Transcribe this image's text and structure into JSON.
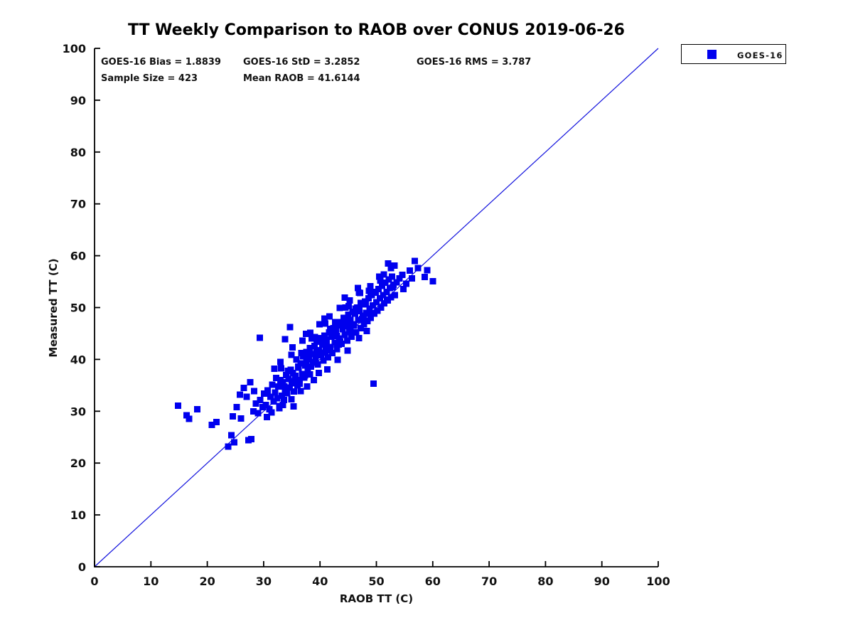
{
  "chart": {
    "title": "TT Weekly Comparison to RAOB over CONUS 2019-06-26"
  },
  "stats": {
    "bias": "GOES-16 Bias = 1.8839",
    "std": "GOES-16 StD = 3.2852",
    "rms": "GOES-16 RMS = 3.787",
    "sample": "Sample Size = 423",
    "mean_raob": "Mean RAOB = 41.6144",
    "values": {
      "bias": 1.8839,
      "std": 3.2852,
      "rms": 3.787,
      "sample_size": 423,
      "mean_raob": 41.6144
    }
  },
  "legend": {
    "items": [
      {
        "label": "GOES-16",
        "marker_color": "#0000EE",
        "marker_shape": "square"
      }
    ],
    "position": "top-right-outside"
  },
  "axes": {
    "x_label": "RAOB TT (C)",
    "y_label": "Measured TT (C)"
  },
  "colors": {
    "marker": "#0000EE",
    "line": "#1111DD",
    "axis": "#000000",
    "text": "#111111",
    "background": "#ffffff"
  },
  "chart_data": {
    "type": "scatter",
    "title": "TT Weekly Comparison to RAOB over CONUS 2019-06-26",
    "xlabel": "RAOB TT (C)",
    "ylabel": "Measured TT (C)",
    "xlim": [
      0,
      100
    ],
    "ylim": [
      0,
      100
    ],
    "xticks": [
      0,
      10,
      20,
      30,
      40,
      50,
      60,
      70,
      80,
      90,
      100
    ],
    "yticks": [
      0,
      10,
      20,
      30,
      40,
      50,
      60,
      70,
      80,
      90,
      100
    ],
    "grid": false,
    "legend_position": "top-right-outside",
    "marker": {
      "shape": "square",
      "size": 9,
      "color": "#0000EE"
    },
    "reference_line": {
      "from": [
        0,
        0
      ],
      "to": [
        100,
        100
      ],
      "color": "#1111DD",
      "width": 1.2
    },
    "series": [
      {
        "name": "GOES-16",
        "points": [
          [
            14.8,
            31.1
          ],
          [
            16.3,
            29.2
          ],
          [
            16.8,
            28.5
          ],
          [
            18.2,
            30.4
          ],
          [
            20.8,
            27.4
          ],
          [
            21.6,
            27.9
          ],
          [
            24.5,
            29.0
          ],
          [
            26.0,
            28.6
          ],
          [
            23.7,
            23.2
          ],
          [
            24.3,
            25.4
          ],
          [
            24.8,
            24.0
          ],
          [
            27.3,
            24.4
          ],
          [
            27.8,
            24.6
          ],
          [
            25.2,
            30.8
          ],
          [
            25.8,
            33.2
          ],
          [
            26.5,
            34.5
          ],
          [
            27.0,
            32.8
          ],
          [
            27.6,
            35.6
          ],
          [
            28.3,
            33.9
          ],
          [
            29.3,
            44.2
          ],
          [
            34.7,
            46.2
          ],
          [
            33.8,
            43.9
          ],
          [
            49.5,
            35.3
          ],
          [
            52.1,
            58.5
          ],
          [
            52.6,
            57.6
          ],
          [
            53.2,
            58.1
          ],
          [
            56.8,
            59.0
          ],
          [
            57.4,
            57.6
          ],
          [
            59.0,
            57.2
          ],
          [
            58.6,
            55.9
          ],
          [
            60.0,
            55.1
          ],
          [
            50.7,
            55.2
          ],
          [
            51.3,
            56.4
          ],
          [
            54.1,
            55.6
          ],
          [
            54.6,
            56.3
          ],
          [
            55.3,
            54.6
          ],
          [
            55.9,
            57.1
          ],
          [
            56.3,
            55.6
          ],
          [
            53.6,
            54.9
          ],
          [
            52.9,
            53.9
          ],
          [
            51.9,
            51.5
          ],
          [
            53.3,
            52.4
          ],
          [
            54.8,
            53.6
          ],
          [
            28.2,
            30.0
          ],
          [
            28.6,
            31.5
          ],
          [
            29.0,
            29.6
          ],
          [
            29.4,
            32.2
          ],
          [
            29.8,
            30.8
          ],
          [
            30.1,
            33.4
          ],
          [
            30.4,
            31.2
          ],
          [
            30.7,
            34.0
          ],
          [
            31.0,
            30.4
          ],
          [
            31.2,
            32.8
          ],
          [
            31.5,
            35.1
          ],
          [
            31.8,
            31.9
          ],
          [
            32.0,
            33.6
          ],
          [
            32.2,
            36.4
          ],
          [
            32.4,
            32.5
          ],
          [
            32.6,
            34.8
          ],
          [
            32.8,
            31.0
          ],
          [
            33.0,
            36.0
          ],
          [
            33.2,
            33.0
          ],
          [
            33.4,
            35.6
          ],
          [
            33.6,
            32.2
          ],
          [
            33.8,
            34.2
          ],
          [
            34.0,
            37.0
          ],
          [
            34.2,
            33.5
          ],
          [
            34.4,
            36.2
          ],
          [
            34.6,
            34.6
          ],
          [
            34.8,
            38.0
          ],
          [
            35.0,
            35.4
          ],
          [
            35.2,
            37.4
          ],
          [
            35.4,
            33.8
          ],
          [
            35.6,
            36.8
          ],
          [
            35.8,
            40.0
          ],
          [
            36.0,
            35.0
          ],
          [
            36.2,
            38.4
          ],
          [
            36.4,
            36.0
          ],
          [
            36.6,
            39.2
          ],
          [
            36.8,
            37.2
          ],
          [
            37.0,
            40.6
          ],
          [
            37.2,
            36.5
          ],
          [
            37.4,
            38.8
          ],
          [
            37.6,
            41.4
          ],
          [
            37.8,
            37.8
          ],
          [
            38.0,
            40.0
          ],
          [
            38.2,
            42.2
          ],
          [
            38.4,
            38.6
          ],
          [
            38.6,
            41.0
          ],
          [
            38.8,
            39.4
          ],
          [
            39.0,
            42.6
          ],
          [
            39.2,
            40.2
          ],
          [
            39.4,
            43.4
          ],
          [
            39.6,
            39.0
          ],
          [
            39.8,
            41.8
          ],
          [
            40.0,
            44.0
          ],
          [
            40.2,
            40.8
          ],
          [
            40.4,
            42.9
          ],
          [
            40.6,
            39.8
          ],
          [
            40.8,
            44.6
          ],
          [
            41.0,
            41.6
          ],
          [
            41.2,
            43.8
          ],
          [
            41.4,
            40.4
          ],
          [
            41.6,
            45.2
          ],
          [
            41.8,
            42.4
          ],
          [
            42.0,
            44.4
          ],
          [
            42.2,
            41.2
          ],
          [
            42.4,
            46.0
          ],
          [
            42.6,
            43.2
          ],
          [
            42.8,
            45.4
          ],
          [
            43.0,
            42.0
          ],
          [
            43.2,
            46.6
          ],
          [
            43.4,
            44.0
          ],
          [
            43.6,
            47.2
          ],
          [
            43.8,
            43.0
          ],
          [
            44.0,
            45.8
          ],
          [
            44.2,
            48.0
          ],
          [
            44.4,
            44.8
          ],
          [
            44.6,
            46.4
          ],
          [
            44.8,
            43.6
          ],
          [
            45.0,
            48.6
          ],
          [
            45.2,
            45.6
          ],
          [
            45.4,
            47.6
          ],
          [
            45.6,
            44.4
          ],
          [
            45.8,
            49.2
          ],
          [
            46.0,
            46.8
          ],
          [
            46.2,
            48.8
          ],
          [
            46.4,
            45.2
          ],
          [
            46.6,
            50.0
          ],
          [
            46.8,
            47.6
          ],
          [
            47.0,
            49.6
          ],
          [
            47.2,
            46.0
          ],
          [
            47.4,
            50.6
          ],
          [
            47.6,
            48.4
          ],
          [
            47.8,
            46.8
          ],
          [
            48.0,
            51.2
          ],
          [
            48.2,
            49.0
          ],
          [
            48.4,
            47.4
          ],
          [
            48.6,
            51.8
          ],
          [
            48.8,
            49.8
          ],
          [
            49.0,
            48.0
          ],
          [
            49.2,
            52.4
          ],
          [
            49.4,
            50.4
          ],
          [
            49.6,
            48.8
          ],
          [
            49.8,
            53.0
          ],
          [
            50.0,
            51.0
          ],
          [
            50.2,
            49.4
          ],
          [
            50.4,
            53.6
          ],
          [
            50.6,
            51.8
          ],
          [
            50.8,
            50.0
          ],
          [
            51.0,
            54.2
          ],
          [
            51.2,
            52.4
          ],
          [
            51.4,
            50.8
          ],
          [
            51.6,
            54.8
          ],
          [
            51.8,
            53.0
          ],
          [
            52.0,
            51.4
          ],
          [
            52.2,
            55.4
          ],
          [
            52.4,
            53.8
          ],
          [
            52.6,
            52.0
          ],
          [
            52.8,
            56.0
          ],
          [
            53.0,
            54.4
          ],
          [
            33.1,
            38.3
          ],
          [
            33.7,
            34.8
          ],
          [
            34.3,
            37.8
          ],
          [
            34.9,
            40.9
          ],
          [
            35.5,
            35.8
          ],
          [
            36.1,
            38.6
          ],
          [
            36.7,
            41.2
          ],
          [
            37.3,
            36.9
          ],
          [
            37.9,
            40.9
          ],
          [
            38.5,
            44.0
          ],
          [
            39.1,
            44.3
          ],
          [
            39.7,
            40.8
          ],
          [
            40.3,
            43.8
          ],
          [
            40.9,
            46.9
          ],
          [
            41.5,
            41.8
          ],
          [
            42.1,
            44.6
          ],
          [
            42.7,
            47.2
          ],
          [
            43.3,
            42.9
          ],
          [
            43.9,
            46.9
          ],
          [
            44.5,
            50.0
          ],
          [
            45.1,
            50.3
          ],
          [
            45.7,
            46.8
          ],
          [
            46.3,
            49.8
          ],
          [
            46.9,
            52.9
          ],
          [
            47.5,
            47.8
          ],
          [
            48.1,
            50.6
          ],
          [
            48.7,
            53.2
          ],
          [
            49.3,
            48.9
          ],
          [
            49.9,
            52.9
          ],
          [
            50.5,
            56.0
          ],
          [
            36.4,
            35.3
          ],
          [
            37.6,
            39.7
          ],
          [
            38.8,
            39.5
          ],
          [
            40.0,
            44.1
          ],
          [
            41.2,
            42.7
          ],
          [
            42.4,
            45.7
          ],
          [
            43.6,
            43.5
          ],
          [
            44.8,
            47.5
          ],
          [
            46.0,
            46.5
          ],
          [
            47.2,
            50.9
          ],
          [
            38.2,
            37.1
          ],
          [
            39.4,
            41.5
          ],
          [
            40.6,
            41.3
          ],
          [
            41.8,
            45.9
          ],
          [
            43.0,
            44.5
          ],
          [
            44.2,
            47.5
          ],
          [
            45.4,
            45.3
          ],
          [
            46.6,
            49.3
          ],
          [
            47.8,
            48.3
          ],
          [
            49.0,
            52.7
          ],
          [
            30.6,
            28.9
          ],
          [
            31.4,
            29.8
          ],
          [
            32.8,
            30.6
          ],
          [
            33.4,
            31.2
          ],
          [
            34.9,
            32.3
          ],
          [
            36.6,
            33.9
          ],
          [
            38.9,
            36.0
          ],
          [
            41.3,
            38.1
          ],
          [
            43.1,
            39.9
          ],
          [
            44.9,
            41.7
          ],
          [
            35.3,
            30.9
          ],
          [
            37.7,
            34.8
          ],
          [
            39.8,
            37.4
          ],
          [
            46.9,
            44.1
          ],
          [
            48.3,
            45.5
          ],
          [
            31.9,
            38.2
          ],
          [
            33.0,
            39.5
          ],
          [
            35.1,
            42.3
          ],
          [
            36.9,
            43.6
          ],
          [
            38.3,
            45.1
          ],
          [
            39.9,
            46.8
          ],
          [
            41.7,
            48.3
          ],
          [
            43.5,
            49.9
          ],
          [
            45.3,
            51.4
          ],
          [
            47.1,
            52.8
          ],
          [
            48.9,
            54.1
          ],
          [
            44.4,
            51.9
          ],
          [
            46.7,
            53.8
          ],
          [
            40.8,
            47.9
          ],
          [
            37.5,
            44.9
          ]
        ]
      }
    ]
  }
}
